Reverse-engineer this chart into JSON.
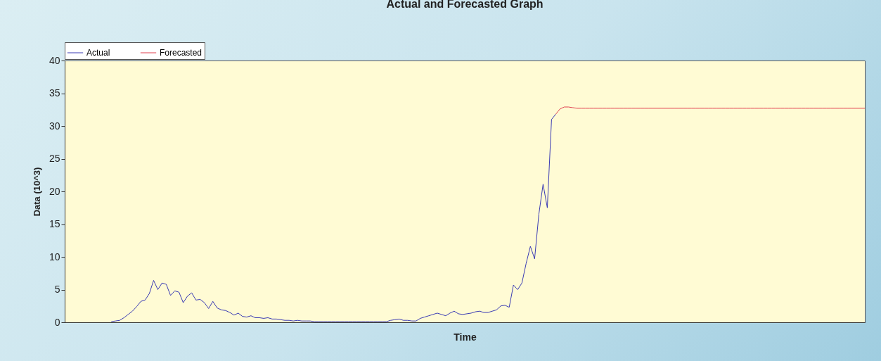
{
  "chart_data": {
    "type": "line",
    "title": "Actual and Forecasted Graph",
    "xlabel": "Time",
    "ylabel": "Data (10^3)",
    "categories": [
      null,
      null,
      null,
      null,
      null,
      null,
      null,
      null,
      null,
      null,
      null,
      null,
      null,
      null,
      null,
      null,
      null,
      null,
      null,
      null,
      null,
      null,
      null,
      null,
      null,
      null,
      null,
      null,
      null,
      null,
      null,
      null,
      null,
      null,
      null,
      null,
      null,
      null,
      null,
      null,
      null,
      null,
      null,
      null,
      null,
      null,
      null,
      null,
      null,
      null,
      null,
      null,
      null,
      null,
      null,
      null,
      null,
      null,
      null,
      null,
      null,
      null,
      null,
      null,
      null,
      null,
      null,
      null,
      null,
      null,
      null,
      null,
      null,
      null,
      null,
      null,
      null,
      null,
      null,
      null,
      null,
      null,
      null,
      null,
      null,
      null,
      null,
      null,
      null,
      null,
      null,
      null,
      null,
      null,
      null,
      null,
      null,
      null,
      null,
      null,
      null,
      null,
      null,
      null,
      null,
      null,
      null,
      null,
      null,
      null,
      null,
      null,
      null,
      null,
      null,
      null,
      null,
      null,
      null,
      null,
      null,
      null,
      null,
      null,
      null,
      null,
      null,
      null,
      null,
      null,
      null,
      null,
      null,
      null,
      null,
      null,
      null,
      null,
      null,
      null,
      null,
      null,
      null,
      null,
      null,
      null,
      null,
      null,
      null,
      null,
      null,
      null,
      null,
      null,
      null,
      null,
      null,
      null,
      null,
      null,
      null,
      null,
      null,
      null,
      null,
      null,
      null,
      null,
      null,
      null,
      null,
      null,
      null,
      null,
      null,
      null,
      null,
      null,
      null,
      null,
      null,
      null,
      null,
      null,
      null,
      null,
      null,
      null,
      null,
      null
    ],
    "series": [
      {
        "name": "Actual",
        "color": "#3a3ab4",
        "values": [
          null,
          null,
          null,
          null,
          null,
          null,
          null,
          null,
          null,
          null,
          null,
          0.1,
          0.2,
          0.3,
          0.7,
          1.2,
          1.7,
          2.4,
          3.2,
          3.4,
          4.4,
          6.4,
          5.0,
          6.0,
          5.8,
          4.1,
          4.8,
          4.6,
          3.0,
          4.0,
          4.5,
          3.4,
          3.5,
          3.0,
          2.1,
          3.2,
          2.2,
          1.9,
          1.8,
          1.5,
          1.1,
          1.4,
          0.9,
          0.8,
          1.0,
          0.7,
          0.7,
          0.6,
          0.7,
          0.5,
          0.5,
          0.4,
          0.3,
          0.3,
          0.2,
          0.3,
          0.2,
          0.2,
          0.2,
          0.1,
          0.1,
          0.1,
          0.1,
          0.1,
          0.1,
          0.1,
          0.1,
          0.1,
          0.1,
          0.1,
          0.1,
          0.1,
          0.1,
          0.1,
          0.1,
          0.1,
          0.1,
          0.3,
          0.4,
          0.5,
          0.3,
          0.3,
          0.2,
          0.2,
          0.6,
          0.8,
          1.0,
          1.2,
          1.4,
          1.2,
          1.0,
          1.4,
          1.7,
          1.3,
          1.2,
          1.3,
          1.4,
          1.6,
          1.7,
          1.5,
          1.5,
          1.7,
          1.9,
          2.5,
          2.6,
          2.3,
          5.7,
          5.0,
          6.0,
          9.0,
          11.6,
          9.7,
          16.5,
          21.1,
          17.5,
          31.0,
          31.8,
          null,
          null,
          null,
          null,
          null,
          null,
          null,
          null,
          null,
          null,
          null,
          null,
          null,
          null,
          null,
          null,
          null,
          null,
          null,
          null,
          null,
          null,
          null,
          null,
          null,
          null,
          null,
          null,
          null,
          null,
          null,
          null,
          null,
          null,
          null,
          null,
          null,
          null,
          null,
          null,
          null,
          null,
          null,
          null,
          null,
          null,
          null,
          null,
          null,
          null,
          null,
          null,
          null,
          null,
          null,
          null,
          null,
          null,
          null,
          null,
          null,
          null,
          null,
          null,
          null,
          null,
          null,
          null,
          null,
          null,
          null,
          null,
          null
        ]
      },
      {
        "name": "Forecasted",
        "color": "#e0404f",
        "values": [
          null,
          null,
          null,
          null,
          null,
          null,
          null,
          null,
          null,
          null,
          null,
          null,
          null,
          null,
          null,
          null,
          null,
          null,
          null,
          null,
          null,
          null,
          null,
          null,
          null,
          null,
          null,
          null,
          null,
          null,
          null,
          null,
          null,
          null,
          null,
          null,
          null,
          null,
          null,
          null,
          null,
          null,
          null,
          null,
          null,
          null,
          null,
          null,
          null,
          null,
          null,
          null,
          null,
          null,
          null,
          null,
          null,
          null,
          null,
          null,
          null,
          null,
          null,
          null,
          null,
          null,
          null,
          null,
          null,
          null,
          null,
          null,
          null,
          null,
          null,
          null,
          null,
          null,
          null,
          null,
          null,
          null,
          null,
          null,
          null,
          null,
          null,
          null,
          null,
          null,
          null,
          null,
          null,
          null,
          null,
          null,
          null,
          null,
          null,
          null,
          null,
          null,
          null,
          null,
          null,
          null,
          null,
          null,
          null,
          null,
          null,
          null,
          null,
          null,
          null,
          null,
          31.8,
          32.6,
          32.9,
          32.9,
          32.8,
          32.7,
          32.7,
          32.7,
          32.7,
          32.7,
          32.7,
          32.7,
          32.7,
          32.7,
          32.7,
          32.7,
          32.7,
          32.7,
          32.7,
          32.7,
          32.7,
          32.7,
          32.7,
          32.7,
          32.7,
          32.7,
          32.7,
          32.7,
          32.7,
          32.7,
          32.7,
          32.7,
          32.7,
          32.7,
          32.7,
          32.7,
          32.7,
          32.7,
          32.7,
          32.7,
          32.7,
          32.7,
          32.7,
          32.7,
          32.7,
          32.7,
          32.7,
          32.7,
          32.7,
          32.7,
          32.7,
          32.7,
          32.7,
          32.7,
          32.7,
          32.7,
          32.7,
          32.7,
          32.7,
          32.7,
          32.7,
          32.7,
          32.7,
          32.7,
          32.7,
          32.7,
          32.7,
          32.7,
          32.7,
          32.7,
          32.7,
          32.7,
          32.7,
          32.7
        ]
      }
    ],
    "ylim": [
      0,
      40
    ],
    "yticks": [
      0,
      5,
      10,
      15,
      20,
      25,
      30,
      35,
      40
    ],
    "grid": false,
    "legend": "top left",
    "tick_labels": "y",
    "line_style": "solid"
  }
}
